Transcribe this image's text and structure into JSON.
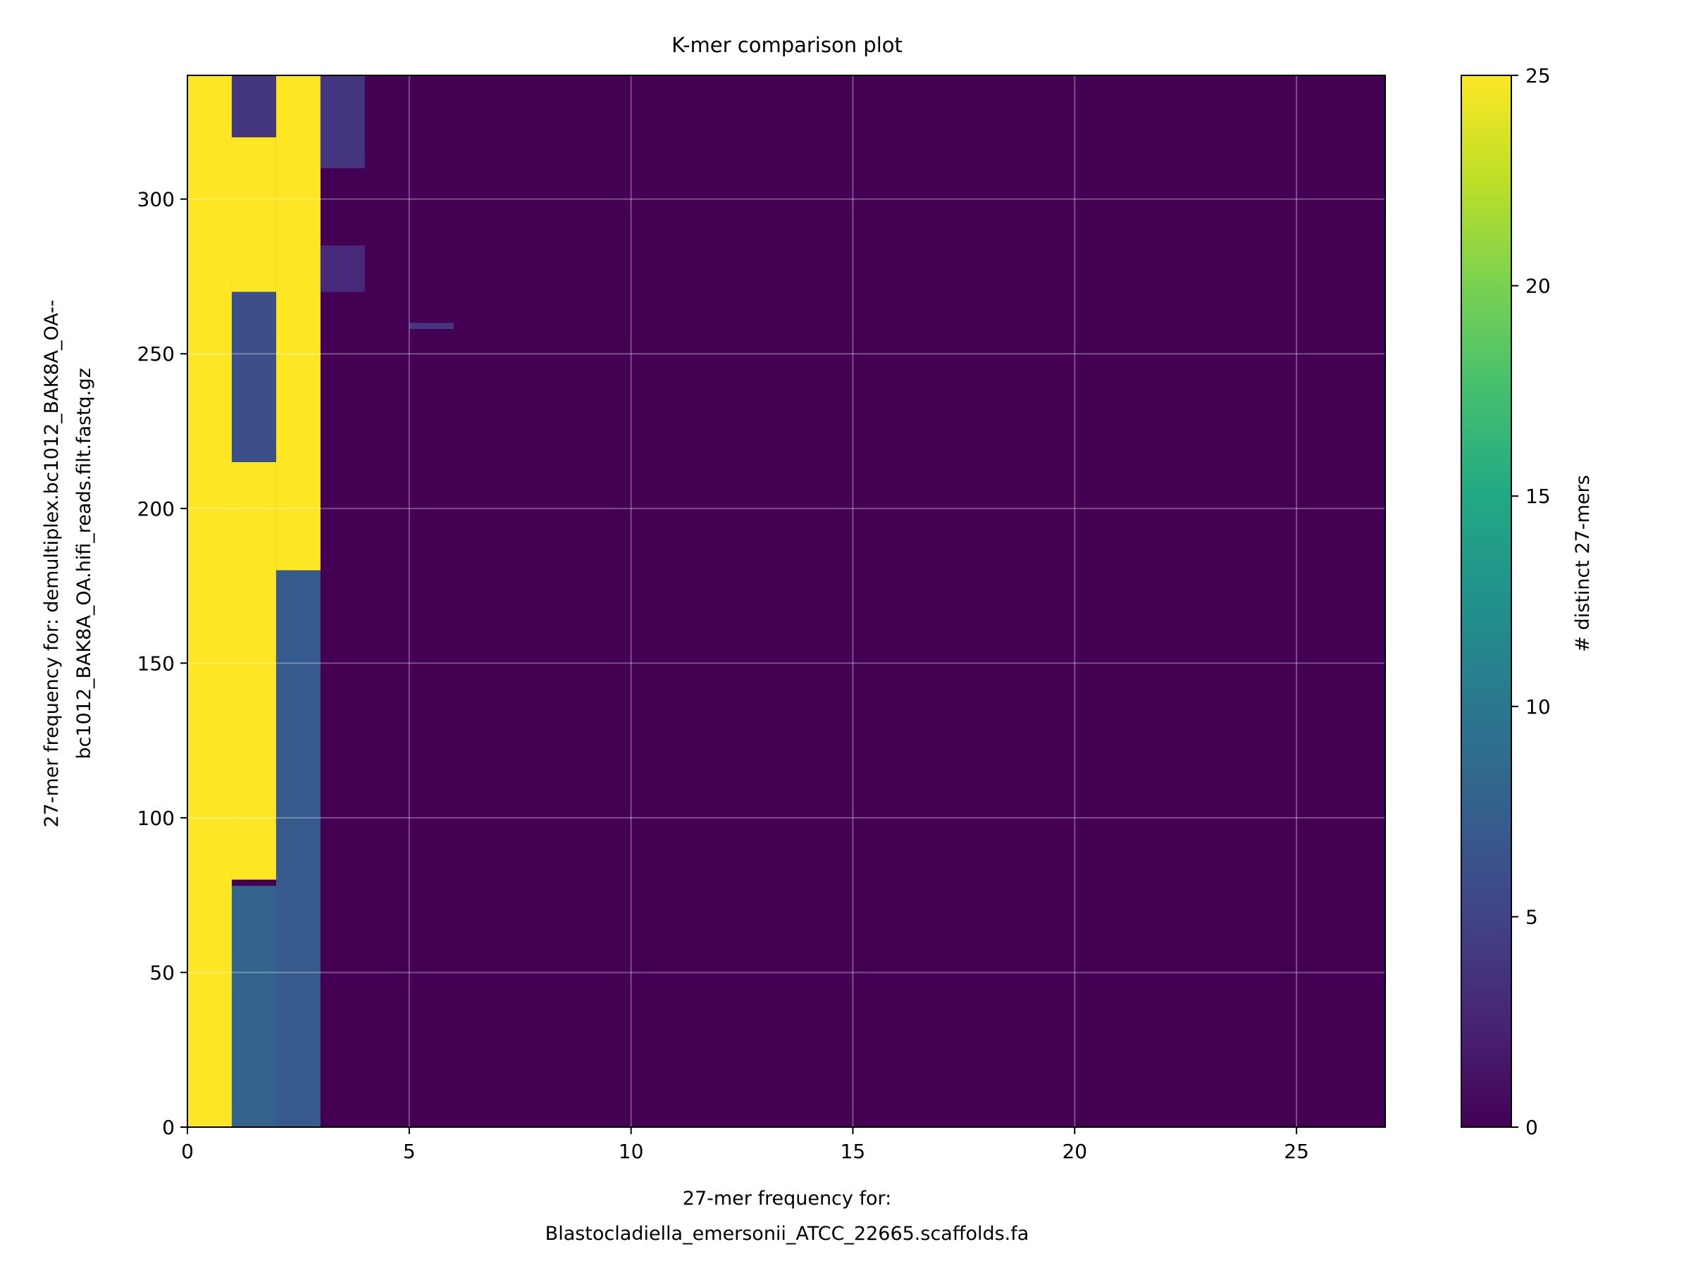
{
  "chart_data": {
    "type": "heatmap",
    "title": "K-mer comparison plot",
    "xlabel_lines": [
      "27-mer frequency for:",
      "Blastocladiella_emersonii_ATCC_22665.scaffolds.fa"
    ],
    "ylabel_lines": [
      "27-mer frequency for: demultiplex.bc1012_BAK8A_OA--",
      "bc1012_BAK8A_OA.hifi_reads.filt.fastq.gz"
    ],
    "xlim": [
      0,
      27
    ],
    "ylim": [
      0,
      340
    ],
    "x_ticks": [
      0,
      5,
      10,
      15,
      20,
      25
    ],
    "y_ticks": [
      0,
      50,
      100,
      150,
      200,
      250,
      300
    ],
    "grid": true,
    "colormap": "viridis",
    "background_color": "#440154",
    "colorbar": {
      "label": "# distinct 27-mers",
      "range": [
        0,
        25
      ],
      "ticks": [
        0,
        5,
        10,
        15,
        20,
        25
      ]
    },
    "regions": [
      {
        "x": [
          0,
          1
        ],
        "y": [
          0,
          340
        ],
        "value": 25
      },
      {
        "x": [
          1,
          2
        ],
        "y": [
          80,
          215
        ],
        "value": 25
      },
      {
        "x": [
          1,
          2
        ],
        "y": [
          270,
          320
        ],
        "value": 25
      },
      {
        "x": [
          2,
          3
        ],
        "y": [
          180,
          340
        ],
        "value": 25
      },
      {
        "x": [
          1,
          2
        ],
        "y": [
          0,
          78
        ],
        "value": 8
      },
      {
        "x": [
          1,
          2
        ],
        "y": [
          215,
          270
        ],
        "value": 6
      },
      {
        "x": [
          1,
          2
        ],
        "y": [
          320,
          340
        ],
        "value": 4
      },
      {
        "x": [
          2,
          3
        ],
        "y": [
          0,
          180
        ],
        "value": 7
      },
      {
        "x": [
          3,
          4
        ],
        "y": [
          310,
          340
        ],
        "value": 4
      },
      {
        "x": [
          3,
          4
        ],
        "y": [
          270,
          285
        ],
        "value": 3
      },
      {
        "x": [
          5,
          6
        ],
        "y": [
          258,
          260
        ],
        "value": 4
      }
    ]
  }
}
